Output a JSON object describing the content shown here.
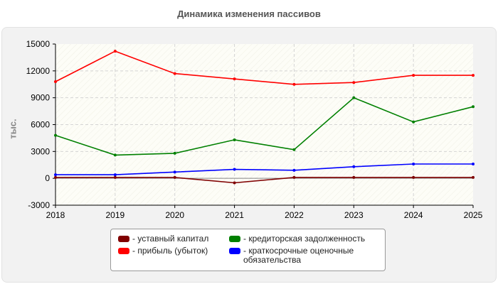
{
  "chart_data": {
    "type": "line",
    "title": "Динамика изменения пассивов",
    "ylabel": "тыс.",
    "xlabel": "",
    "x": [
      "2018",
      "2019",
      "2020",
      "2021",
      "2022",
      "2023",
      "2024",
      "2025"
    ],
    "ylim": [
      -3000,
      15000
    ],
    "yticks": [
      -3000,
      0,
      3000,
      6000,
      9000,
      12000,
      15000
    ],
    "grid": true,
    "legend_position": "bottom",
    "series": [
      {
        "name": "- уставный капитал",
        "color": "#800000",
        "values": [
          100,
          100,
          100,
          -500,
          100,
          100,
          100,
          100
        ]
      },
      {
        "name": "- прибыль (убыток)",
        "color": "#ff0000",
        "values": [
          10800,
          14200,
          11700,
          11100,
          10500,
          10700,
          11500,
          11500
        ]
      },
      {
        "name": "- кредиторская задолженность",
        "color": "#008000",
        "values": [
          4800,
          2600,
          2800,
          4300,
          3200,
          9000,
          6300,
          8000
        ]
      },
      {
        "name": "- краткосрочные оценочные обязательства",
        "color": "#0000ff",
        "values": [
          400,
          400,
          700,
          1000,
          900,
          1300,
          1600,
          1600
        ]
      }
    ]
  }
}
